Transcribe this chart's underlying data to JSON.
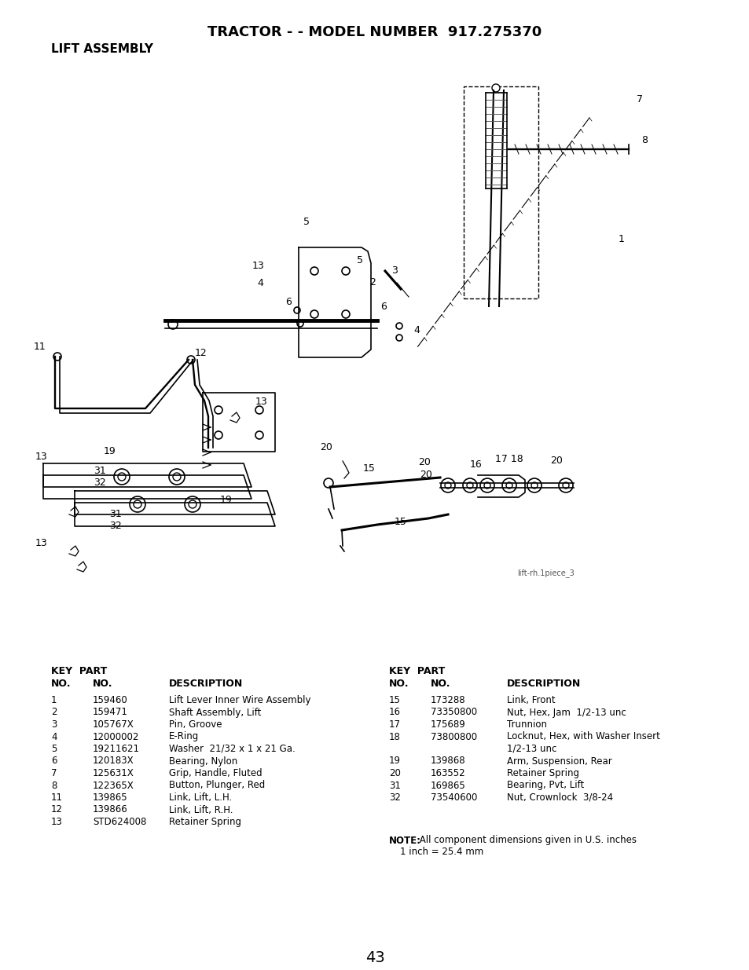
{
  "title": "TRACTOR - - MODEL NUMBER  917.275370",
  "subtitle": "LIFT ASSEMBLY",
  "diagram_label": "lift-rh.1piece_3",
  "page_number": "43",
  "bg": "#ffffff",
  "fg": "#000000",
  "parts_left": [
    [
      "1",
      "159460",
      "Lift Lever Inner Wire Assembly"
    ],
    [
      "2",
      "159471",
      "Shaft Assembly, Lift"
    ],
    [
      "3",
      "105767X",
      "Pin, Groove"
    ],
    [
      "4",
      "12000002",
      "E-Ring"
    ],
    [
      "5",
      "19211621",
      "Washer  21/32 x 1 x 21 Ga."
    ],
    [
      "6",
      "120183X",
      "Bearing, Nylon"
    ],
    [
      "7",
      "125631X",
      "Grip, Handle, Fluted"
    ],
    [
      "8",
      "122365X",
      "Button, Plunger, Red"
    ],
    [
      "11",
      "139865",
      "Link, Lift, L.H."
    ],
    [
      "12",
      "139866",
      "Link, Lift, R.H."
    ],
    [
      "13",
      "STD624008",
      "Retainer Spring"
    ]
  ],
  "parts_right": [
    [
      "15",
      "173288",
      "Link, Front"
    ],
    [
      "16",
      "73350800",
      "Nut, Hex, Jam  1/2-13 unc"
    ],
    [
      "17",
      "175689",
      "Trunnion"
    ],
    [
      "18",
      "73800800",
      "Locknut, Hex, with Washer Insert"
    ],
    [
      "",
      "",
      "1/2-13 unc"
    ],
    [
      "19",
      "139868",
      "Arm, Suspension, Rear"
    ],
    [
      "20",
      "163552",
      "Retainer Spring"
    ],
    [
      "31",
      "169865",
      "Bearing, Pvt, Lift"
    ],
    [
      "32",
      "73540600",
      "Nut, Crownlock  3/8-24"
    ]
  ],
  "note_bold": "NOTE:",
  "note_rest": " All component dimensions given in U.S. inches",
  "note_line2": "1 inch = 25.4 mm"
}
